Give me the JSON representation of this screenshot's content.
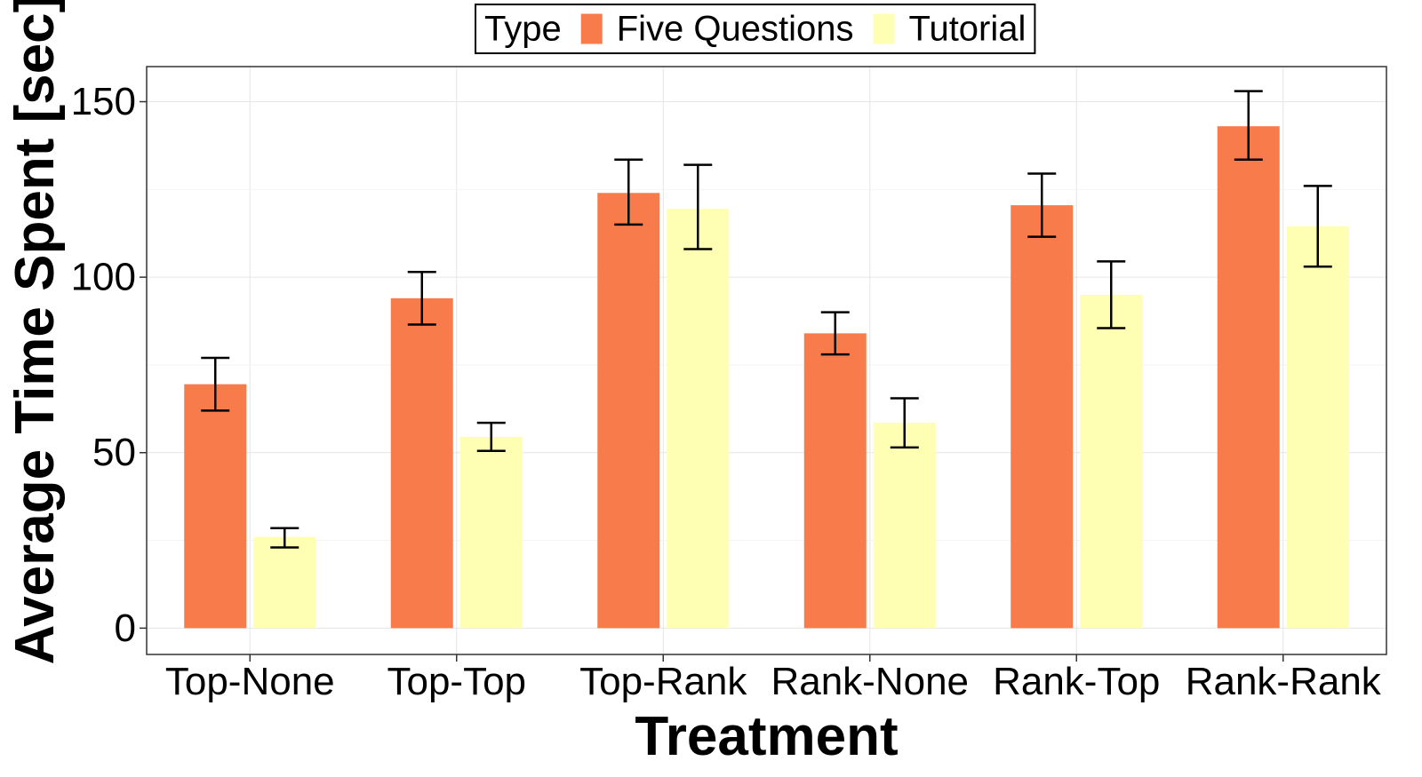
{
  "chart_data": {
    "type": "bar",
    "xlabel": "Treatment",
    "ylabel": "Average Time Spent [sec]",
    "ylim": [
      -7.5,
      160
    ],
    "yticks": [
      0,
      50,
      100,
      150
    ],
    "grid": true,
    "legend": {
      "title": "Type",
      "placement": "top"
    },
    "categories": [
      "Top-None",
      "Top-Top",
      "Top-Rank",
      "Rank-None",
      "Rank-Top",
      "Rank-Rank"
    ],
    "series": [
      {
        "name": "Five Questions",
        "color": "#F87C4B",
        "values": [
          69.5,
          94.0,
          124.0,
          84.0,
          120.5,
          143.0
        ],
        "error_low": [
          62.0,
          86.5,
          115.0,
          78.0,
          111.5,
          133.5
        ],
        "error_high": [
          77.0,
          101.5,
          133.5,
          90.0,
          129.5,
          153.0
        ]
      },
      {
        "name": "Tutorial",
        "color": "#FFFFB3",
        "values": [
          26.0,
          54.5,
          119.5,
          58.5,
          95.0,
          114.5
        ],
        "error_low": [
          23.0,
          50.5,
          108.0,
          51.5,
          85.5,
          103.0
        ],
        "error_high": [
          28.5,
          58.5,
          132.0,
          65.5,
          104.5,
          126.0
        ]
      }
    ]
  }
}
